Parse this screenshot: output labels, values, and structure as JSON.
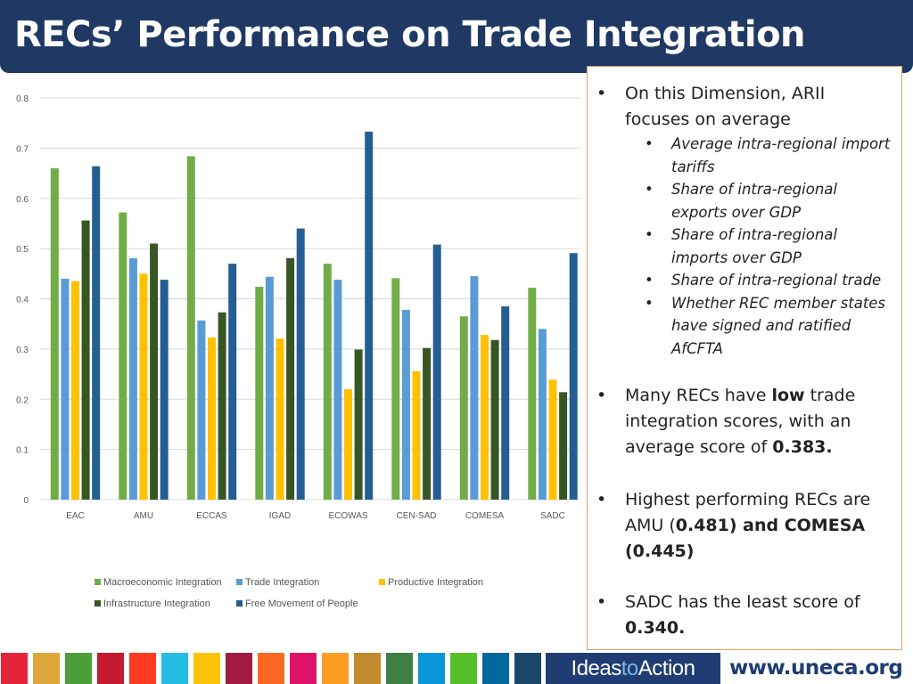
{
  "title": "RECs’ Performance on Trade Integration",
  "chart_data": {
    "type": "bar",
    "categories": [
      "EAC",
      "AMU",
      "ECCAS",
      "IGAD",
      "ECOWAS",
      "CEN-SAD",
      "COMESA",
      "SADC"
    ],
    "series": [
      {
        "name": "Macroeconomic Integration",
        "color": "#70ad47",
        "values": [
          0.66,
          0.572,
          0.684,
          0.424,
          0.47,
          0.441,
          0.365,
          0.422
        ]
      },
      {
        "name": "Trade Integration",
        "color": "#5b9bd5",
        "values": [
          0.44,
          0.481,
          0.357,
          0.444,
          0.438,
          0.378,
          0.445,
          0.34
        ]
      },
      {
        "name": "Productive Integration",
        "color": "#ffc000",
        "values": [
          0.435,
          0.45,
          0.323,
          0.321,
          0.22,
          0.256,
          0.328,
          0.239
        ]
      },
      {
        "name": "Infrastructure Integration",
        "color": "#375623",
        "values": [
          0.556,
          0.51,
          0.373,
          0.481,
          0.299,
          0.302,
          0.318,
          0.214
        ]
      },
      {
        "name": "Free Movement of People",
        "color": "#255e91",
        "values": [
          0.664,
          0.438,
          0.47,
          0.54,
          0.733,
          0.508,
          0.385,
          0.491
        ]
      }
    ],
    "yticks": [
      "0",
      "0.1",
      "0.2",
      "0.3",
      "0.4",
      "0.5",
      "0.6",
      "0.7",
      "0.8"
    ],
    "ylim": [
      0,
      0.8
    ],
    "grid": true,
    "legend_position": "bottom"
  },
  "info_box": {
    "bullet1_text": "On this Dimension, ARII focuses on average",
    "sub_items": [
      "Average intra-regional import tariffs",
      "Share of intra-regional exports over GDP",
      "Share of intra-regional imports over GDP",
      "Share of intra-regional trade",
      "Whether REC member states have signed and ratified AfCFTA"
    ],
    "bullet2_pre": "Many RECs have ",
    "bullet2_bold": "low",
    "bullet2_mid": " trade integration scores, with an average score of ",
    "bullet2_bold2": "0.383.",
    "bullet3_pre": "Highest performing RECs are AMU (",
    "bullet3_bold": "0.481) and COMESA (0.445)",
    "bullet4_pre": "SADC has the least score of ",
    "bullet4_bold": "0.340."
  },
  "footer": {
    "sdg_colors": [
      "#e5243b",
      "#dda63a",
      "#4c9f38",
      "#c5192d",
      "#ff3a21",
      "#26bde2",
      "#fcc30b",
      "#a21942",
      "#fd6925",
      "#dd1367",
      "#fd9d24",
      "#bf8b2e",
      "#3f7e44",
      "#0a97d9",
      "#56c02b",
      "#00689d",
      "#19486a"
    ],
    "ideas_pre": "Ideas",
    "ideas_mid": "to",
    "ideas_post": "Action",
    "url": "www.uneca.org"
  }
}
